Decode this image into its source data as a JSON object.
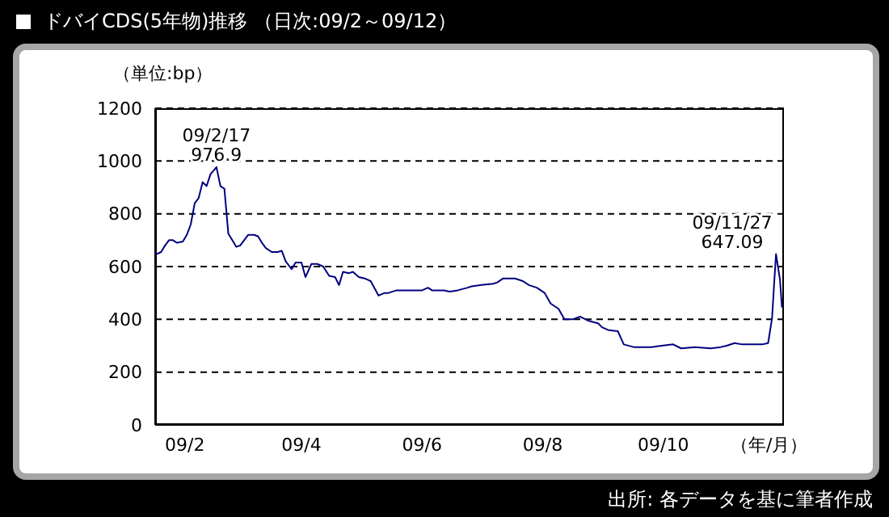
{
  "chart_data": {
    "type": "line",
    "title": "ドバイCDS(5年物)推移 （日次:09/2～09/12）",
    "ylabel": "（単位:bp）",
    "xlabel": "（年/月）",
    "x": [
      "--01-17",
      "--01-20",
      "--01-22",
      "--01-24",
      "--01-26",
      "--01-28",
      "--01-31",
      "--02-02",
      "--02-04",
      "--02-06",
      "--02-08",
      "--02-10",
      "--02-12",
      "--02-14",
      "--02-17",
      "--02-19",
      "--02-21",
      "--02-23",
      "--02-25",
      "--02-27",
      "--03-01",
      "--03-03",
      "--03-05",
      "--03-08",
      "--03-10",
      "--03-12",
      "--03-14",
      "--03-17",
      "--03-20",
      "--03-22",
      "--03-24",
      "--03-27",
      "--03-29",
      "--04-01",
      "--04-03",
      "--04-06",
      "--04-09",
      "--04-12",
      "--04-15",
      "--04-18",
      "--04-20",
      "--04-22",
      "--04-25",
      "--04-27",
      "--04-30",
      "--05-03",
      "--05-06",
      "--05-10",
      "--05-13",
      "--05-15",
      "--05-19",
      "--05-24",
      "--05-28",
      "--06-01",
      "--06-04",
      "--06-06",
      "--06-12",
      "--06-15",
      "--06-19",
      "--06-24",
      "--06-26",
      "--07-01",
      "--07-07",
      "--07-09",
      "--07-12",
      "--07-18",
      "--07-22",
      "--07-25",
      "--07-29",
      "--08-02",
      "--08-05",
      "--08-09",
      "--08-12",
      "--08-16",
      "--08-20",
      "--08-24",
      "--08-29",
      "--08-31",
      "--09-03",
      "--09-08",
      "--09-11",
      "--09-16",
      "--09-25",
      "--09-30",
      "--10-06",
      "--10-10",
      "--10-17",
      "--10-25",
      "--10-30",
      "--11-02",
      "--11-06",
      "--11-10",
      "--11-15",
      "--11-20",
      "--11-23",
      "--11-25",
      "--11-26",
      "--11-27",
      "--11-29",
      "--11-30"
    ],
    "series": [
      {
        "color": "#000080",
        "values": [
          645,
          655,
          680,
          700,
          700,
          690,
          695,
          720,
          760,
          840,
          860,
          920,
          905,
          950,
          976.9,
          905,
          895,
          725,
          700,
          675,
          680,
          700,
          720,
          720,
          715,
          690,
          670,
          655,
          655,
          660,
          620,
          590,
          615,
          615,
          560,
          610,
          610,
          600,
          565,
          560,
          530,
          580,
          575,
          580,
          560,
          555,
          545,
          490,
          500,
          500,
          510,
          510,
          510,
          510,
          520,
          510,
          510,
          505,
          510,
          520,
          525,
          530,
          535,
          540,
          555,
          555,
          545,
          530,
          520,
          500,
          460,
          440,
          400,
          400,
          410,
          395,
          385,
          370,
          360,
          355,
          305,
          295,
          295,
          300,
          305,
          290,
          295,
          290,
          295,
          300,
          310,
          305,
          305,
          305,
          310,
          405,
          530,
          647.09,
          550,
          445
        ]
      }
    ],
    "xlim": [
      "--01-17",
      "--12-01"
    ],
    "xticks": [
      {
        "value": "--02-01",
        "label": "09/2"
      },
      {
        "value": "--04-01",
        "label": "09/4"
      },
      {
        "value": "--06-01",
        "label": "09/6"
      },
      {
        "value": "--08-01",
        "label": "09/8"
      },
      {
        "value": "--10-01",
        "label": "09/10"
      }
    ],
    "ylim": [
      0,
      1200
    ],
    "yticks": [
      0,
      200,
      400,
      600,
      800,
      1000,
      1200
    ],
    "grid": "y",
    "line_style": "solid",
    "marker": "none",
    "annotations": [
      {
        "text": "09/2/17\n976.9",
        "x": "--02-17",
        "y": 976.9
      },
      {
        "text": "09/11/27\n647.09",
        "x": "--11-27",
        "y": 647.09
      },
      "出所: 各データを基に筆者作成"
    ]
  }
}
